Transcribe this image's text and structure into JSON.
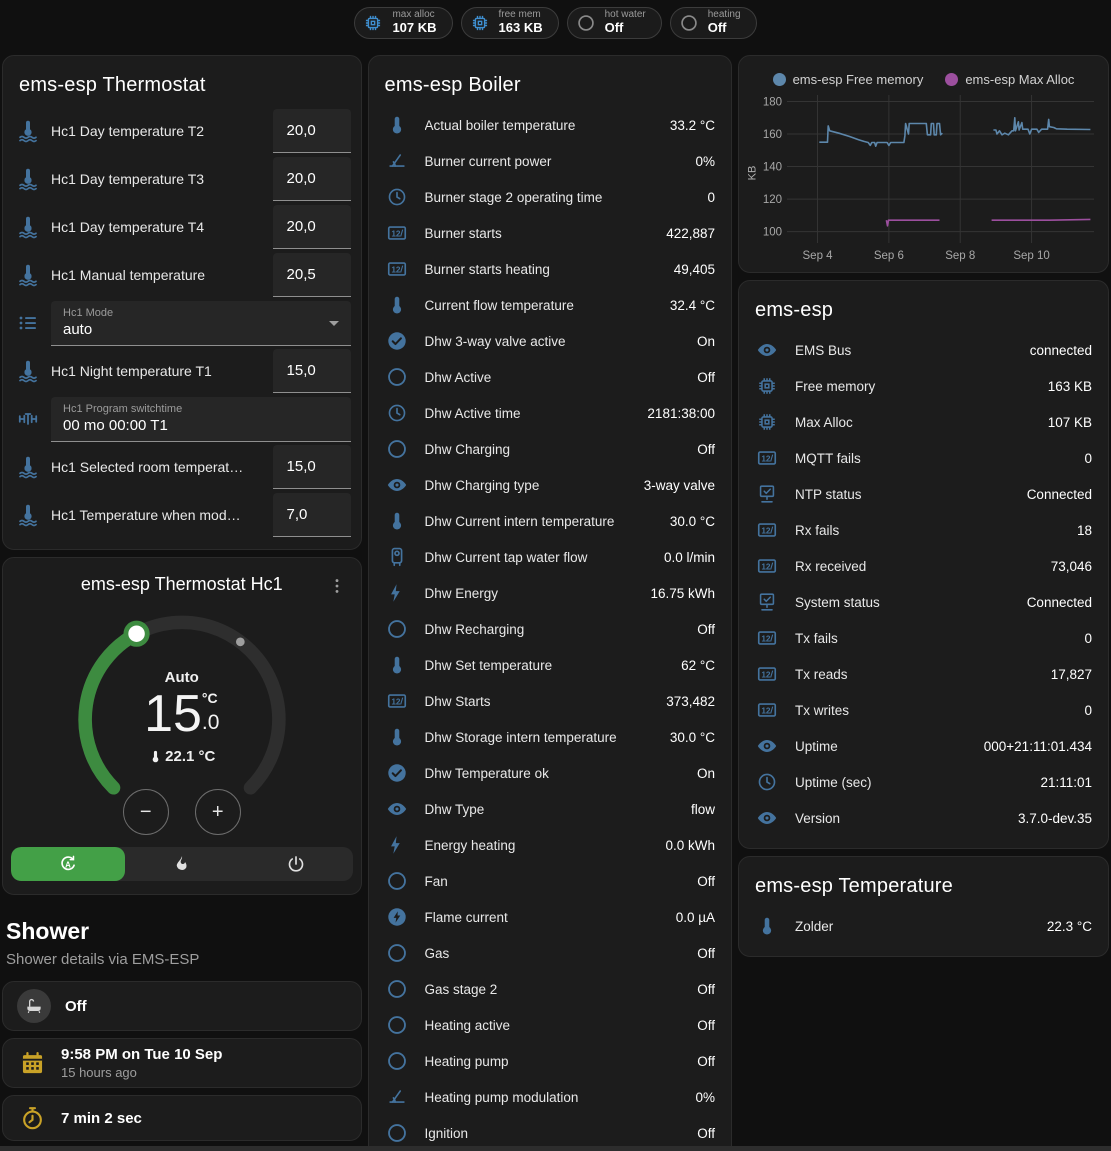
{
  "colors": {
    "icon_blue": "#44739e",
    "badge_icon_blue": "#3f8fd0",
    "active_green": "#43a047",
    "arc_green": "#3d8b40",
    "amber": "#c9a227",
    "snowflake_blue": "#4a8fd0",
    "card_bg": "#1c1c1c",
    "page_bg": "#101010"
  },
  "badges": [
    {
      "icon": "chip-icon",
      "label": "max alloc",
      "value": "107 KB"
    },
    {
      "icon": "chip-icon",
      "label": "free mem",
      "value": "163 KB"
    },
    {
      "icon": "radio-icon",
      "label": "hot water",
      "value": "Off"
    },
    {
      "icon": "radio-icon",
      "label": "heating",
      "value": "Off"
    }
  ],
  "thermostat_card": {
    "title": "ems-esp Thermostat",
    "rows": [
      {
        "type": "number",
        "icon": "thermometer-water-icon",
        "label": "Hc1 Day temperature T2",
        "value": "20,0"
      },
      {
        "type": "number",
        "icon": "thermometer-water-icon",
        "label": "Hc1 Day temperature T3",
        "value": "20,0"
      },
      {
        "type": "number",
        "icon": "thermometer-water-icon",
        "label": "Hc1 Day temperature T4",
        "value": "20,0"
      },
      {
        "type": "number",
        "icon": "thermometer-water-icon",
        "label": "Hc1 Manual temperature",
        "value": "20,5"
      },
      {
        "type": "select",
        "icon": "list-icon",
        "label": "Hc1 Mode",
        "value": "auto"
      },
      {
        "type": "number",
        "icon": "thermometer-water-icon",
        "label": "Hc1 Night temperature T1",
        "value": "15,0"
      },
      {
        "type": "text",
        "icon": "valve-icon",
        "label": "Hc1 Program switchtime",
        "value": "00 mo 00:00 T1"
      },
      {
        "type": "number",
        "icon": "thermometer-water-icon",
        "label": "Hc1 Selected room temperat…",
        "value": "15,0"
      },
      {
        "type": "number",
        "icon": "thermometer-water-icon",
        "label": "Hc1 Temperature when mod…",
        "value": "7,0"
      }
    ]
  },
  "hc1_card": {
    "title": "ems-esp Thermostat Hc1",
    "mode": "Auto",
    "target_main": "15",
    "target_unit": "°C",
    "target_frac": ".0",
    "current": "22.1 °C",
    "decrease_label": "−",
    "increase_label": "+"
  },
  "shower": {
    "title": "Shower",
    "subtitle": "Shower details via EMS-ESP",
    "cards": [
      {
        "icon": "bathtub-icon",
        "circle": true,
        "primary": "Off"
      },
      {
        "icon": "calendar-icon",
        "primary": "9:58 PM on Tue 10 Sep",
        "secondary": "15 hours ago"
      },
      {
        "icon": "timer-icon",
        "primary": "7 min 2 sec"
      },
      {
        "icon": "snowflake-alert-icon",
        "centered": true
      }
    ]
  },
  "boiler_card": {
    "title": "ems-esp Boiler",
    "rows": [
      {
        "icon": "thermometer-icon",
        "label": "Actual boiler temperature",
        "value": "33.2 °C"
      },
      {
        "icon": "angle-icon",
        "label": "Burner current power",
        "value": "0%"
      },
      {
        "icon": "clock-icon",
        "label": "Burner stage 2 operating time",
        "value": "0"
      },
      {
        "icon": "counter-icon",
        "label": "Burner starts",
        "value": "422,887"
      },
      {
        "icon": "counter-icon",
        "label": "Burner starts heating",
        "value": "49,405"
      },
      {
        "icon": "thermometer-icon",
        "label": "Current flow temperature",
        "value": "32.4 °C"
      },
      {
        "icon": "check-circle-icon",
        "label": "Dhw 3-way valve active",
        "value": "On"
      },
      {
        "icon": "circle-icon",
        "label": "Dhw Active",
        "value": "Off"
      },
      {
        "icon": "clock-icon",
        "label": "Dhw Active time",
        "value": "2181:38:00"
      },
      {
        "icon": "circle-icon",
        "label": "Dhw Charging",
        "value": "Off"
      },
      {
        "icon": "eye-icon",
        "label": "Dhw Charging type",
        "value": "3-way valve"
      },
      {
        "icon": "thermometer-icon",
        "label": "Dhw Current intern temperature",
        "value": "30.0 °C"
      },
      {
        "icon": "water-boiler-icon",
        "label": "Dhw Current tap water flow",
        "value": "0.0 l/min"
      },
      {
        "icon": "flash-icon",
        "label": "Dhw Energy",
        "value": "16.75 kWh"
      },
      {
        "icon": "circle-icon",
        "label": "Dhw Recharging",
        "value": "Off"
      },
      {
        "icon": "thermometer-icon",
        "label": "Dhw Set temperature",
        "value": "62 °C"
      },
      {
        "icon": "counter-icon",
        "label": "Dhw Starts",
        "value": "373,482"
      },
      {
        "icon": "thermometer-icon",
        "label": "Dhw Storage intern temperature",
        "value": "30.0 °C"
      },
      {
        "icon": "check-circle-icon",
        "label": "Dhw Temperature ok",
        "value": "On"
      },
      {
        "icon": "eye-icon",
        "label": "Dhw Type",
        "value": "flow"
      },
      {
        "icon": "flash-icon",
        "label": "Energy heating",
        "value": "0.0 kWh"
      },
      {
        "icon": "circle-icon",
        "label": "Fan",
        "value": "Off"
      },
      {
        "icon": "flash-circle-icon",
        "label": "Flame current",
        "value": "0.0 µA"
      },
      {
        "icon": "circle-icon",
        "label": "Gas",
        "value": "Off"
      },
      {
        "icon": "circle-icon",
        "label": "Gas stage 2",
        "value": "Off"
      },
      {
        "icon": "circle-icon",
        "label": "Heating active",
        "value": "Off"
      },
      {
        "icon": "circle-icon",
        "label": "Heating pump",
        "value": "Off"
      },
      {
        "icon": "angle-icon",
        "label": "Heating pump modulation",
        "value": "0%"
      },
      {
        "icon": "circle-icon",
        "label": "Ignition",
        "value": "Off"
      }
    ]
  },
  "system_card": {
    "title": "ems-esp",
    "rows": [
      {
        "icon": "eye-icon",
        "label": "EMS Bus",
        "value": "connected"
      },
      {
        "icon": "chip-icon",
        "label": "Free memory",
        "value": "163 KB"
      },
      {
        "icon": "chip-icon",
        "label": "Max Alloc",
        "value": "107 KB"
      },
      {
        "icon": "counter-icon",
        "label": "MQTT fails",
        "value": "0"
      },
      {
        "icon": "network-check-icon",
        "label": "NTP status",
        "value": "Connected"
      },
      {
        "icon": "counter-icon",
        "label": "Rx fails",
        "value": "18"
      },
      {
        "icon": "counter-icon",
        "label": "Rx received",
        "value": "73,046"
      },
      {
        "icon": "network-check-icon",
        "label": "System status",
        "value": "Connected"
      },
      {
        "icon": "counter-icon",
        "label": "Tx fails",
        "value": "0"
      },
      {
        "icon": "counter-icon",
        "label": "Tx reads",
        "value": "17,827"
      },
      {
        "icon": "counter-icon",
        "label": "Tx writes",
        "value": "0"
      },
      {
        "icon": "eye-icon",
        "label": "Uptime",
        "value": "000+21:11:01.434"
      },
      {
        "icon": "clock-icon",
        "label": "Uptime (sec)",
        "value": "21:11:01"
      },
      {
        "icon": "eye-icon",
        "label": "Version",
        "value": "3.7.0-dev.35"
      }
    ]
  },
  "temperature_card": {
    "title": "ems-esp Temperature",
    "rows": [
      {
        "icon": "thermometer-icon",
        "label": "Zolder",
        "value": "22.3 °C"
      }
    ]
  },
  "chart_data": {
    "type": "line",
    "title": "",
    "xlabel": "",
    "ylabel": "KB",
    "legend_position": "top",
    "grid": true,
    "ylim": [
      93,
      184
    ],
    "yticks": [
      100,
      120,
      140,
      160,
      180
    ],
    "xlim": [
      3.2,
      11.75
    ],
    "xticks": [
      {
        "x": 4,
        "label": "Sep 4"
      },
      {
        "x": 6,
        "label": "Sep 6"
      },
      {
        "x": 8,
        "label": "Sep 8"
      },
      {
        "x": 10,
        "label": "Sep 10"
      }
    ],
    "series": [
      {
        "name": "ems-esp Free memory",
        "color": "#5d87ab",
        "segments": [
          [
            [
              4.05,
              155
            ],
            [
              4.28,
              155
            ],
            [
              4.3,
              165
            ],
            [
              4.34,
              162
            ],
            [
              4.6,
              160.5
            ],
            [
              4.9,
              158.5
            ],
            [
              5.15,
              156.5
            ],
            [
              5.3,
              155.5
            ],
            [
              5.42,
              154.8
            ],
            [
              5.48,
              153
            ],
            [
              5.52,
              154.8
            ],
            [
              5.6,
              154.8
            ],
            [
              5.63,
              152.5
            ],
            [
              5.67,
              154.8
            ],
            [
              5.95,
              154.8
            ],
            [
              6.0,
              153
            ],
            [
              6.05,
              154.8
            ],
            [
              6.42,
              154.8
            ],
            [
              6.45,
              159
            ],
            [
              6.47,
              166.5
            ],
            [
              6.55,
              160
            ],
            [
              6.57,
              166.5
            ],
            [
              7.05,
              166.5
            ],
            [
              7.08,
              159.5
            ],
            [
              7.17,
              159.5
            ],
            [
              7.19,
              166.5
            ],
            [
              7.25,
              166.5
            ],
            [
              7.27,
              159.5
            ],
            [
              7.33,
              159.5
            ],
            [
              7.35,
              166.5
            ],
            [
              7.42,
              166.5
            ],
            [
              7.45,
              159.5
            ],
            [
              7.5,
              160.5
            ]
          ],
          [
            [
              8.93,
              162.5
            ],
            [
              9.0,
              162.5
            ],
            [
              9.03,
              160
            ],
            [
              9.1,
              162
            ],
            [
              9.17,
              159.5
            ],
            [
              9.25,
              160.5
            ],
            [
              9.35,
              159.5
            ],
            [
              9.45,
              162
            ],
            [
              9.5,
              162
            ],
            [
              9.53,
              170
            ],
            [
              9.55,
              162
            ],
            [
              9.63,
              167.5
            ],
            [
              9.65,
              162.5
            ],
            [
              9.73,
              167
            ],
            [
              9.75,
              163
            ],
            [
              9.9,
              163
            ],
            [
              9.95,
              160
            ],
            [
              10.0,
              163
            ],
            [
              10.15,
              163
            ],
            [
              10.2,
              161
            ],
            [
              10.28,
              163
            ],
            [
              10.45,
              163
            ],
            [
              10.48,
              169
            ],
            [
              10.5,
              164.5
            ],
            [
              10.62,
              164
            ],
            [
              10.7,
              163.2
            ],
            [
              11.0,
              163
            ],
            [
              11.65,
              162.8
            ]
          ]
        ]
      },
      {
        "name": "ems-esp Max Alloc",
        "color": "#9c4f9e",
        "segments": [
          [
            [
              5.93,
              107
            ],
            [
              5.96,
              103.5
            ],
            [
              5.99,
              107
            ],
            [
              7.42,
              107
            ]
          ],
          [
            [
              8.88,
              107
            ],
            [
              10.5,
              107
            ],
            [
              11.65,
              107.5
            ]
          ]
        ]
      }
    ]
  }
}
